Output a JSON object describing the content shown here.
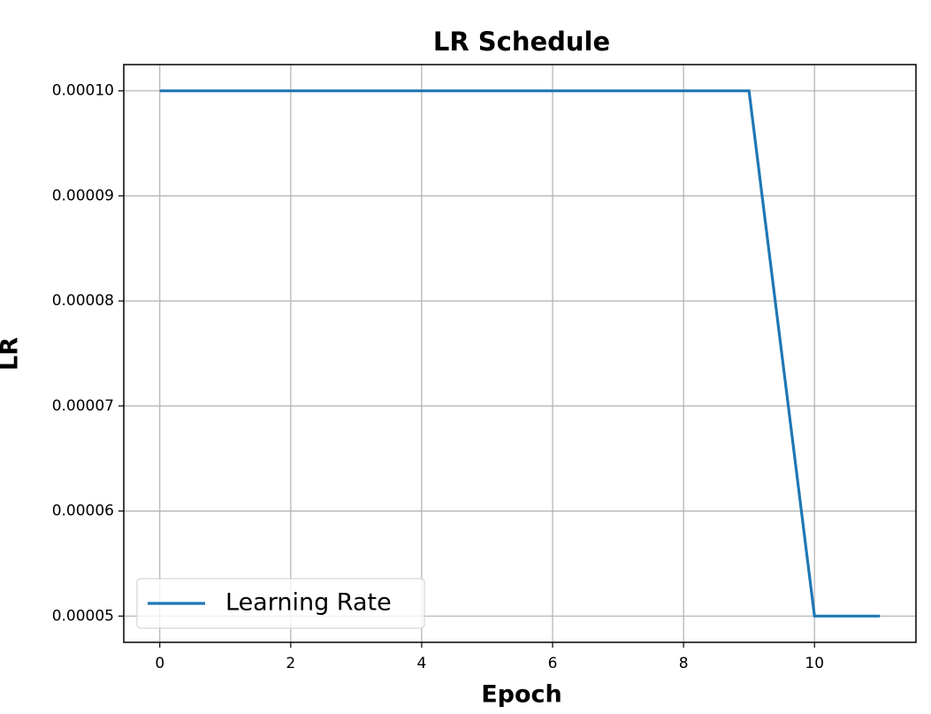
{
  "chart_data": {
    "type": "line",
    "title": "LR Schedule",
    "xlabel": "Epoch",
    "ylabel": "LR",
    "x": [
      0,
      1,
      2,
      3,
      4,
      5,
      6,
      7,
      8,
      9,
      10,
      11
    ],
    "series": [
      {
        "name": "Learning Rate",
        "color": "#1f77b4",
        "values": [
          0.0001,
          0.0001,
          0.0001,
          0.0001,
          0.0001,
          0.0001,
          0.0001,
          0.0001,
          0.0001,
          0.0001,
          5e-05,
          5e-05
        ]
      }
    ],
    "xlim": [
      -0.55,
      11.55
    ],
    "ylim": [
      4.75e-05,
      0.0001025
    ],
    "xticks": [
      0,
      2,
      4,
      6,
      8,
      10
    ],
    "yticks": [
      {
        "value": 5e-05,
        "label": "0.00005"
      },
      {
        "value": 6e-05,
        "label": "0.00006"
      },
      {
        "value": 7e-05,
        "label": "0.00007"
      },
      {
        "value": 8e-05,
        "label": "0.00008"
      },
      {
        "value": 9e-05,
        "label": "0.00009"
      },
      {
        "value": 0.0001,
        "label": "0.00010"
      }
    ],
    "grid": true,
    "legend": "lower left"
  }
}
